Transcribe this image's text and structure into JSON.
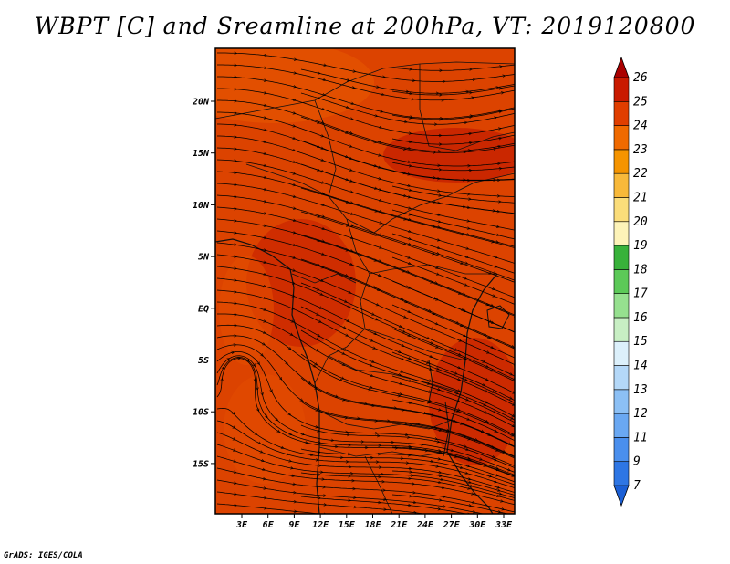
{
  "title": "WBPT [C] and Sreamline at 200hPa, VT: 2019120800",
  "credit": "GrADS: IGES/COLA",
  "map": {
    "lon_ticks": [
      "3E",
      "6E",
      "9E",
      "12E",
      "15E",
      "18E",
      "21E",
      "24E",
      "27E",
      "30E",
      "33E"
    ],
    "lat_ticks": [
      "20N",
      "15N",
      "10N",
      "5N",
      "EQ",
      "5S",
      "10S",
      "15S"
    ],
    "field": "wet-bulb potential temperature",
    "background_color": "#d93a00"
  },
  "colorbar": {
    "levels": [
      "7",
      "9",
      "11",
      "12",
      "13",
      "14",
      "15",
      "16",
      "17",
      "18",
      "19",
      "20",
      "21",
      "22",
      "23",
      "24",
      "25",
      "26"
    ],
    "colors": [
      "#1a5fd6",
      "#2e76e4",
      "#4a8fed",
      "#6aa8f2",
      "#8cc0f5",
      "#b4d8f8",
      "#dcf0fb",
      "#c8efc4",
      "#96e08f",
      "#5cc958",
      "#38b23a",
      "#fdf3b8",
      "#fbdd7a",
      "#f8b93a",
      "#f59400",
      "#f06a00",
      "#e03e00",
      "#c91a00",
      "#aa0000"
    ]
  }
}
